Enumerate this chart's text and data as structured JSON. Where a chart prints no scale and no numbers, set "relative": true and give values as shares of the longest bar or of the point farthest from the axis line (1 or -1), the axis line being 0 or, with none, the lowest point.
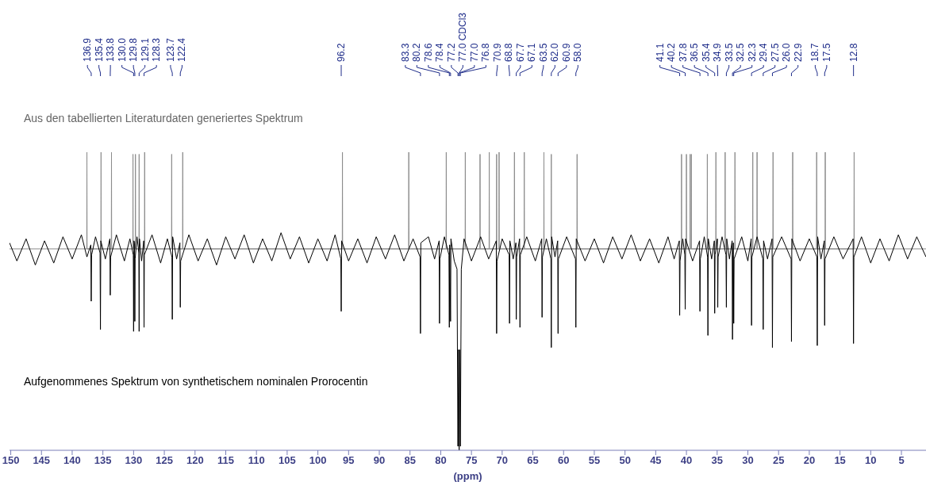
{
  "chart_data": {
    "type": "line",
    "relative": true,
    "xlabel": "(ppm)",
    "xlim": [
      150.2,
      1
    ],
    "xticks": [
      150,
      145,
      140,
      135,
      130,
      125,
      120,
      115,
      110,
      105,
      100,
      95,
      90,
      85,
      80,
      75,
      70,
      65,
      60,
      55,
      50,
      45,
      40,
      35,
      30,
      25,
      20,
      15,
      10,
      5
    ],
    "annotations": [
      "Aus den tabellierten Literaturdaten generiertes Spektrum",
      "Aufgenommenes Spektrum von synthetischem nominalen Prorocentin",
      {
        "text": "136.9",
        "x": 136.9
      },
      {
        "text": "135.4",
        "x": 135.4
      },
      {
        "text": "133.8",
        "x": 133.8
      },
      {
        "text": "130.0",
        "x": 130.0
      },
      {
        "text": "129.8",
        "x": 129.8
      },
      {
        "text": "129.1",
        "x": 129.1
      },
      {
        "text": "128.3",
        "x": 128.3
      },
      {
        "text": "123.7",
        "x": 123.7
      },
      {
        "text": "122.4",
        "x": 122.4
      },
      {
        "text": "96.2",
        "x": 96.2
      },
      {
        "text": "83.3",
        "x": 83.3
      },
      {
        "text": "80.2",
        "x": 80.2
      },
      {
        "text": "78.6",
        "x": 78.6
      },
      {
        "text": "78.4",
        "x": 78.4
      },
      {
        "text": "77.2",
        "x": 77.2
      },
      {
        "text": "77.0 CDCl3",
        "x": 77.0
      },
      {
        "text": "77.0",
        "x": 77.0
      },
      {
        "text": "76.8",
        "x": 76.8
      },
      {
        "text": "70.9",
        "x": 70.9
      },
      {
        "text": "68.8",
        "x": 68.8
      },
      {
        "text": "67.7",
        "x": 67.7
      },
      {
        "text": "67.1",
        "x": 67.1
      },
      {
        "text": "63.5",
        "x": 63.5
      },
      {
        "text": "62.0",
        "x": 62.0
      },
      {
        "text": "60.9",
        "x": 60.9
      },
      {
        "text": "58.0",
        "x": 58.0
      },
      {
        "text": "41.1",
        "x": 41.1
      },
      {
        "text": "40.2",
        "x": 40.2
      },
      {
        "text": "37.8",
        "x": 37.8
      },
      {
        "text": "36.5",
        "x": 36.5
      },
      {
        "text": "35.4",
        "x": 35.4
      },
      {
        "text": "34.9",
        "x": 34.9
      },
      {
        "text": "33.5",
        "x": 33.5
      },
      {
        "text": "32.5",
        "x": 32.5
      },
      {
        "text": "32.3",
        "x": 32.3
      },
      {
        "text": "29.4",
        "x": 29.4
      },
      {
        "text": "27.5",
        "x": 27.5
      },
      {
        "text": "26.0",
        "x": 26.0
      },
      {
        "text": "22.9",
        "x": 22.9
      },
      {
        "text": "18.7",
        "x": 18.7
      },
      {
        "text": "17.5",
        "x": 17.5
      },
      {
        "text": "12.8",
        "x": 12.8
      }
    ],
    "series": [
      {
        "color": "#8c8c8c",
        "x": [
          137.63,
          137.6,
          137.57,
          135.33,
          135.3,
          135.27,
          133.63,
          133.6,
          133.57,
          130.13,
          130.1,
          130.07,
          129.73,
          129.7,
          129.67,
          129.13,
          129.1,
          129.07,
          128.23,
          128.2,
          128.17,
          123.83,
          123.8,
          123.77,
          122.03,
          122.0,
          121.97,
          96.03,
          96.0,
          95.97,
          85.23,
          85.2,
          85.17,
          79.13,
          79.1,
          79.07,
          76.03,
          76.0,
          75.97,
          73.63,
          73.6,
          73.57,
          72.13,
          72.1,
          72.07,
          70.93,
          70.9,
          70.87,
          70.53,
          70.5,
          70.47,
          68.03,
          68.0,
          67.97,
          66.43,
          66.4,
          66.37,
          63.23,
          63.2,
          63.17,
          62.03,
          62.0,
          61.97,
          57.83,
          57.8,
          57.77,
          40.83,
          40.8,
          40.77,
          40.03,
          40.0,
          39.97,
          39.43,
          39.4,
          39.37,
          39.23,
          39.2,
          39.17,
          36.63,
          36.6,
          36.57,
          35.23,
          35.2,
          35.17,
          33.73,
          33.7,
          33.67,
          32.13,
          32.1,
          32.07,
          29.23,
          29.2,
          29.17,
          28.53,
          28.5,
          28.47,
          25.93,
          25.9,
          25.87,
          22.73,
          22.7,
          22.67,
          18.83,
          18.8,
          18.77,
          17.43,
          17.4,
          17.37,
          12.73,
          12.7,
          12.67
        ],
        "values": [
          0,
          0.48,
          0,
          0,
          0.48,
          0,
          0,
          0.48,
          0,
          0,
          0.47,
          0,
          0,
          0.47,
          0,
          0,
          0.47,
          0,
          0,
          0.48,
          0,
          0,
          0.47,
          0,
          0,
          0.48,
          0,
          0,
          0.48,
          0,
          0,
          0.48,
          0,
          0,
          0.48,
          0,
          0,
          0.48,
          0,
          0,
          0.47,
          0,
          0,
          0.48,
          0,
          0,
          0.47,
          0,
          0,
          0.48,
          0,
          0,
          0.48,
          0,
          0,
          0.48,
          0,
          0,
          0.48,
          0,
          0,
          0.47,
          0,
          0,
          0.47,
          0,
          0,
          0.47,
          0,
          0,
          0.47,
          0,
          0,
          0.47,
          0,
          0,
          0.47,
          0,
          0,
          0.47,
          0,
          0,
          0.48,
          0,
          0,
          0.48,
          0,
          0,
          0.48,
          0,
          0,
          0.48,
          0,
          0,
          0.48,
          0,
          0,
          0.48,
          0,
          0,
          0.48,
          0,
          0,
          0.48,
          0,
          0,
          0.48,
          0,
          0,
          0.48,
          0
        ]
      },
      {
        "color": "#000000",
        "x": [
          150.2,
          149,
          147.5,
          146,
          144.5,
          143,
          141.5,
          140,
          138.5,
          137.6,
          136.96,
          136.9,
          136.84,
          136.2,
          135.46,
          135.4,
          135.34,
          134.6,
          133.86,
          133.8,
          133.74,
          132.8,
          131.5,
          130.6,
          130.05,
          130.0,
          129.95,
          129.85,
          129.8,
          129.75,
          129.45,
          129.15,
          129.1,
          129.05,
          128.7,
          128.35,
          128.3,
          128.25,
          127,
          125.6,
          124.5,
          123.76,
          123.7,
          123.64,
          123.0,
          122.46,
          122.4,
          122.34,
          121,
          119.5,
          118,
          116.5,
          115,
          113.5,
          112,
          110.5,
          109,
          107.5,
          106,
          104.5,
          103,
          101.5,
          100,
          98.5,
          97.2,
          96.26,
          96.2,
          96.14,
          95,
          93.5,
          92,
          90.5,
          89,
          87.5,
          86,
          84.5,
          83.36,
          83.3,
          83.24,
          82,
          81,
          80.26,
          80.2,
          80.14,
          79.4,
          78.66,
          78.6,
          78.54,
          78.4,
          78.34,
          77.8,
          77.35,
          77.2,
          77.1,
          77.0,
          76.9,
          76.8,
          76.65,
          76.2,
          75,
          73.5,
          72.2,
          70.96,
          70.9,
          70.84,
          70,
          68.86,
          68.8,
          68.74,
          68.2,
          67.76,
          67.7,
          67.64,
          67.16,
          67.1,
          67.04,
          66,
          64.6,
          63.56,
          63.5,
          63.44,
          62.8,
          62.06,
          62.0,
          61.94,
          61.4,
          60.96,
          60.9,
          60.84,
          59.5,
          58.06,
          58.0,
          57.94,
          56.5,
          55,
          53.5,
          52,
          50.5,
          49,
          47.5,
          46,
          44.5,
          43,
          42,
          41.16,
          41.1,
          41.04,
          40.6,
          40.26,
          40.2,
          40.14,
          39,
          37.86,
          37.8,
          37.74,
          37.1,
          36.56,
          36.5,
          36.44,
          35.9,
          35.46,
          35.4,
          35.34,
          34.96,
          34.9,
          34.84,
          34.2,
          33.56,
          33.5,
          33.44,
          33,
          32.56,
          32.5,
          32.44,
          32.36,
          32.3,
          32.24,
          31,
          30,
          29.46,
          29.4,
          29.34,
          28.5,
          27.56,
          27.5,
          27.44,
          26.8,
          26.06,
          26.0,
          25.94,
          24.5,
          22.96,
          22.9,
          22.84,
          21.5,
          20,
          18.76,
          18.7,
          18.64,
          18.1,
          17.56,
          17.5,
          17.44,
          16,
          14.5,
          12.86,
          12.8,
          12.74,
          11.5,
          10,
          8.5,
          7,
          5.5,
          4,
          2.5,
          1
        ],
        "values": [
          0.03,
          -0.06,
          0.05,
          -0.08,
          0.04,
          -0.07,
          0.06,
          -0.05,
          0.07,
          -0.04,
          0.02,
          -0.26,
          -0.03,
          0.06,
          -0.02,
          -0.4,
          0.04,
          -0.05,
          0.05,
          -0.23,
          -0.04,
          0.07,
          -0.06,
          0.05,
          -0.03,
          -0.41,
          0.04,
          0.03,
          -0.36,
          -0.05,
          0.06,
          -0.02,
          -0.41,
          0.05,
          -0.06,
          0.04,
          -0.39,
          -0.03,
          0.07,
          -0.07,
          0.05,
          -0.04,
          -0.35,
          0.06,
          -0.05,
          0.03,
          -0.29,
          -0.06,
          0.07,
          -0.06,
          0.05,
          -0.08,
          0.06,
          -0.05,
          0.07,
          -0.07,
          0.05,
          -0.06,
          0.08,
          -0.05,
          0.06,
          -0.07,
          0.05,
          -0.06,
          0.07,
          -0.05,
          -0.31,
          0.04,
          -0.06,
          0.05,
          -0.07,
          0.06,
          -0.05,
          0.07,
          -0.06,
          0.05,
          -0.04,
          -0.42,
          0.03,
          0.06,
          -0.05,
          0.04,
          -0.37,
          -0.05,
          0.06,
          -0.03,
          -0.39,
          0.02,
          -0.36,
          0.05,
          -0.06,
          -0.1,
          -0.98,
          -0.5,
          -1,
          -0.5,
          -0.98,
          -0.1,
          0.05,
          -0.06,
          0.06,
          -0.05,
          0.04,
          -0.42,
          -0.06,
          0.05,
          -0.03,
          -0.37,
          0.04,
          -0.05,
          0.03,
          -0.35,
          -0.04,
          0.05,
          -0.39,
          -0.03,
          0.06,
          -0.06,
          0.05,
          -0.34,
          -0.04,
          0.05,
          -0.05,
          -0.49,
          0.06,
          -0.04,
          0.04,
          -0.42,
          -0.05,
          0.06,
          -0.05,
          -0.39,
          0.05,
          -0.06,
          0.05,
          -0.07,
          0.06,
          -0.05,
          0.07,
          -0.06,
          0.05,
          -0.07,
          0.06,
          -0.05,
          0.04,
          -0.33,
          -0.06,
          0.05,
          -0.03,
          -0.3,
          0.05,
          -0.06,
          0.04,
          -0.31,
          -0.05,
          0.06,
          -0.04,
          -0.43,
          0.05,
          -0.05,
          0.04,
          -0.32,
          -0.03,
          0.05,
          -0.29,
          -0.04,
          0.06,
          -0.03,
          -0.29,
          0.05,
          -0.05,
          0.04,
          -0.45,
          -0.03,
          0.03,
          -0.37,
          -0.05,
          0.06,
          -0.06,
          0.05,
          -0.38,
          -0.04,
          0.06,
          -0.05,
          -0.4,
          0.04,
          -0.05,
          0.05,
          -0.49,
          -0.04,
          0.06,
          -0.05,
          -0.46,
          0.05,
          -0.06,
          0.05,
          -0.04,
          -0.48,
          0.06,
          -0.05,
          0.04,
          -0.38,
          -0.05,
          0.06,
          -0.05,
          0.05,
          -0.47,
          -0.04,
          0.06,
          -0.07,
          0.05,
          -0.06,
          0.07,
          -0.05,
          0.06,
          -0.04
        ]
      }
    ]
  }
}
